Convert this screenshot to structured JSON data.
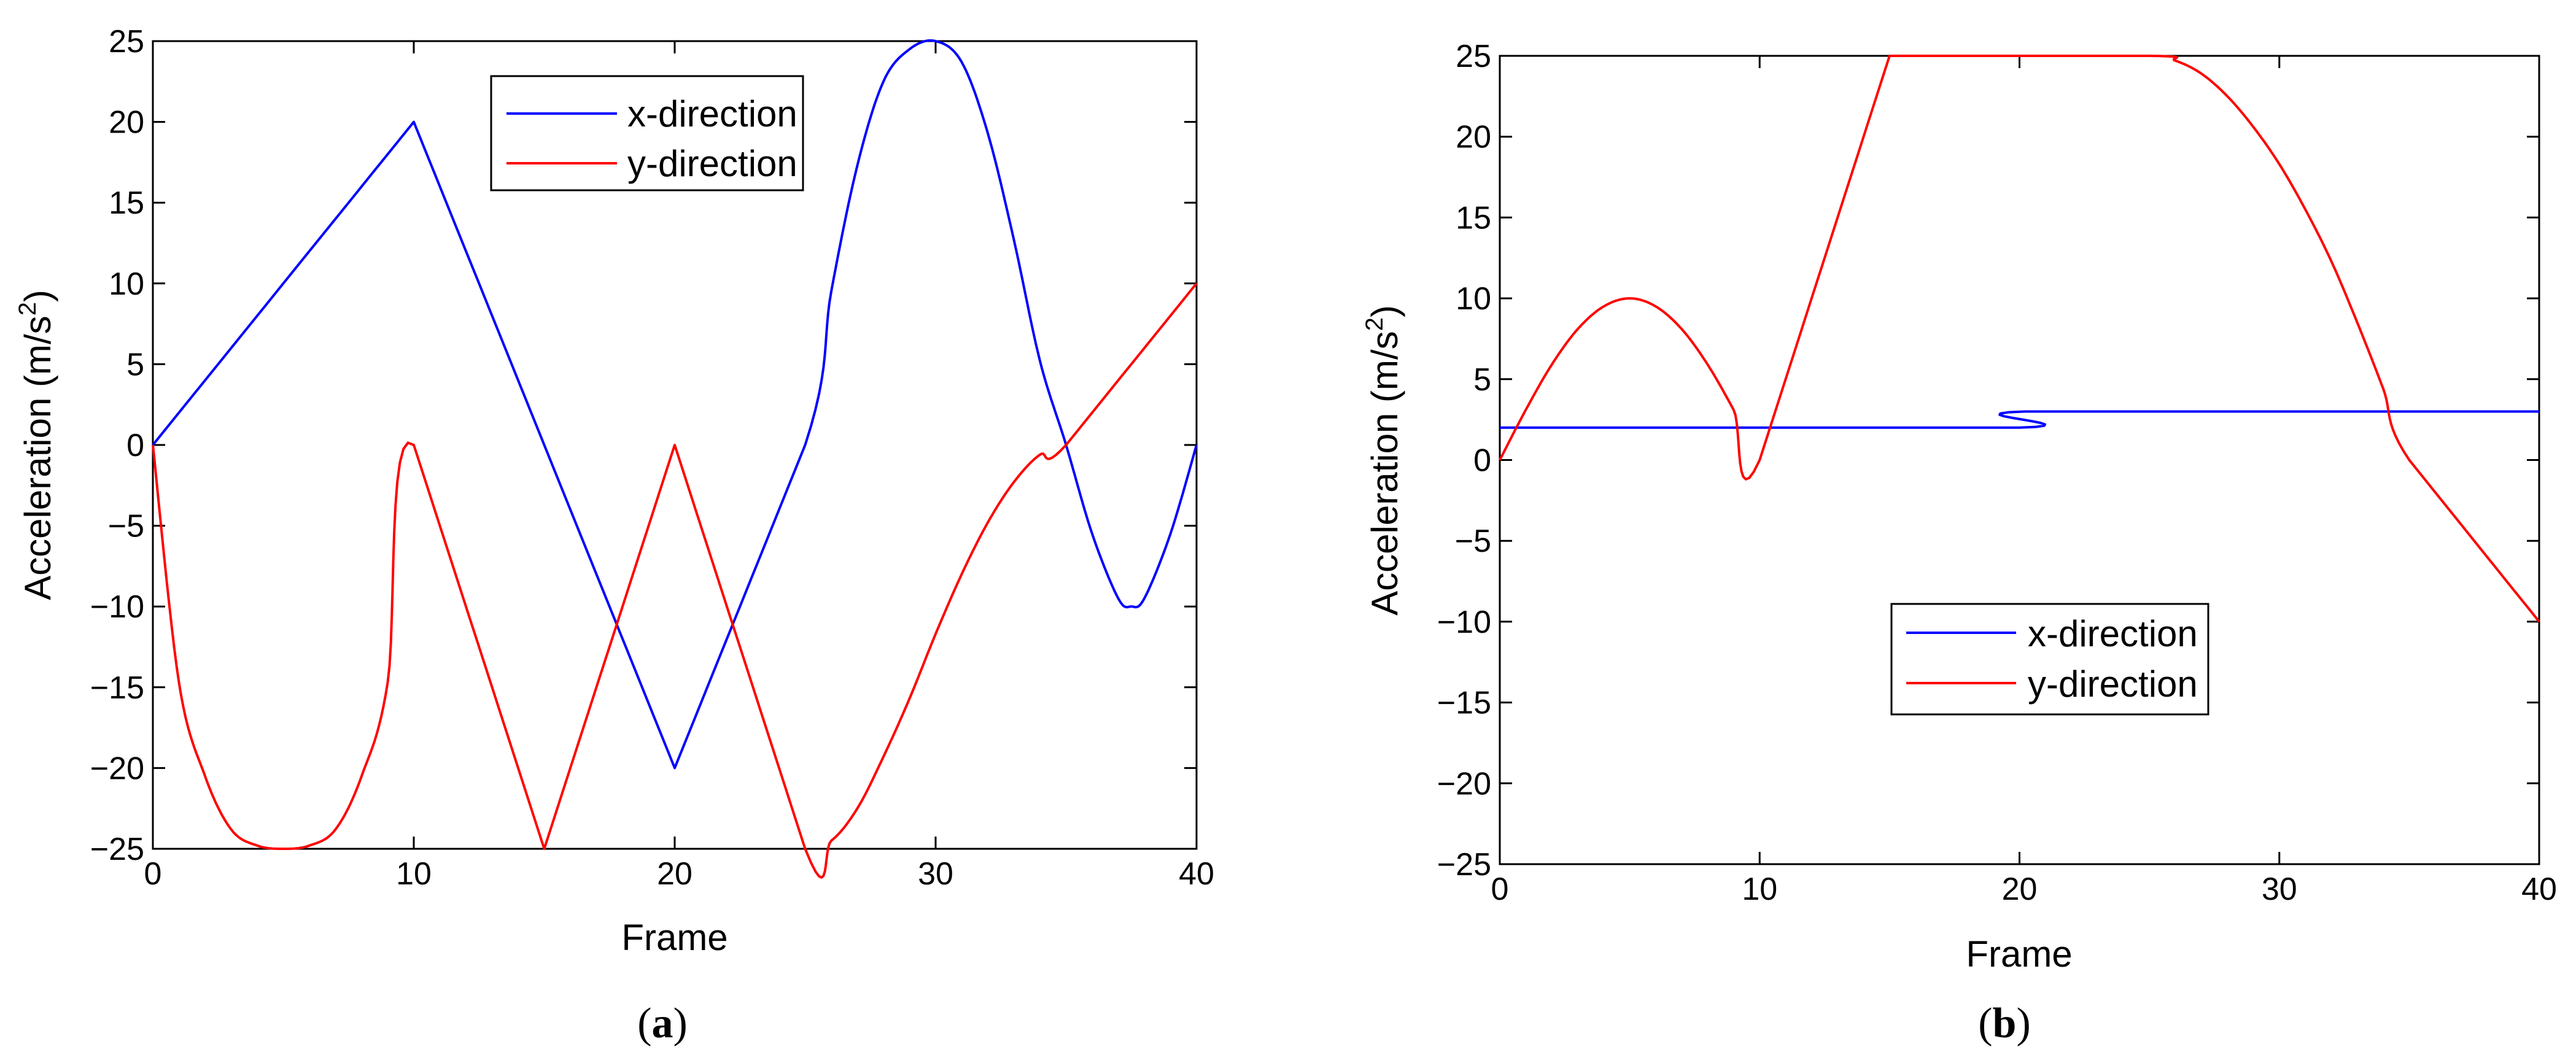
{
  "panels": [
    {
      "caption_open": "(",
      "caption_letter": "a",
      "caption_close": ")"
    },
    {
      "caption_open": "(",
      "caption_letter": "b",
      "caption_close": ")"
    }
  ],
  "colors": {
    "x": "#0000ff",
    "y": "#ff0000",
    "axis": "#000000"
  },
  "chart_data": [
    {
      "type": "line",
      "xlabel": "Frame",
      "ylabel_main": "Acceleration (m/s",
      "ylabel_sup": "2",
      "ylabel_end": ")",
      "xlim": [
        0,
        40
      ],
      "ylim": [
        -25,
        25
      ],
      "xticks": [
        0,
        10,
        20,
        30,
        40
      ],
      "yticks": [
        -25,
        -20,
        -15,
        -10,
        -5,
        0,
        5,
        10,
        15,
        20,
        25
      ],
      "xtick_labels": [
        "0",
        "10",
        "20",
        "30",
        "40"
      ],
      "ytick_labels": [
        "−25",
        "−20",
        "−15",
        "−10",
        "−5",
        "0",
        "5",
        "10",
        "15",
        "20",
        "25"
      ],
      "legend_position": "top-center",
      "series": [
        {
          "name": "x-direction",
          "x": [
            0,
            10,
            15,
            20,
            25,
            26,
            27,
            28,
            29,
            30,
            31,
            32,
            33,
            34,
            35,
            36,
            37,
            37.5,
            38,
            39,
            40
          ],
          "y": [
            0,
            20,
            0,
            -20,
            0,
            9.5,
            17.3,
            22.5,
            24.5,
            25,
            23.7,
            19.3,
            12.7,
            5.2,
            0,
            -5.5,
            -9.5,
            -10,
            -9.5,
            -5.5,
            0
          ]
        },
        {
          "name": "y-direction",
          "x": [
            0,
            1,
            2,
            3,
            4,
            5,
            6,
            7,
            8,
            9,
            10,
            15,
            20,
            25,
            26,
            27,
            28,
            29,
            30,
            31,
            32,
            33,
            34,
            35,
            40
          ],
          "y": [
            0,
            -14.7,
            -20.5,
            -23.8,
            -24.8,
            -25,
            -24.8,
            -23.8,
            -20.5,
            -14.7,
            0,
            -25,
            0,
            -25,
            -24.5,
            -22.5,
            -19.3,
            -15.7,
            -11.7,
            -8,
            -4.8,
            -2.3,
            -0.6,
            0,
            10
          ]
        }
      ]
    },
    {
      "type": "line",
      "xlabel": "Frame",
      "ylabel_main": "Acceleration (m/s",
      "ylabel_sup": "2",
      "ylabel_end": ")",
      "xlim": [
        0,
        40
      ],
      "ylim": [
        -25,
        25
      ],
      "xticks": [
        0,
        10,
        20,
        30,
        40
      ],
      "yticks": [
        -25,
        -20,
        -15,
        -10,
        -5,
        0,
        5,
        10,
        15,
        20,
        25
      ],
      "xtick_labels": [
        "0",
        "10",
        "20",
        "30",
        "40"
      ],
      "ytick_labels": [
        "−25",
        "−20",
        "−15",
        "−10",
        "−5",
        "0",
        "5",
        "10",
        "15",
        "20",
        "25"
      ],
      "legend_position": "center",
      "series": [
        {
          "name": "x-direction",
          "x": [
            0,
            20,
            20.2,
            40
          ],
          "y": [
            2,
            2,
            3,
            3
          ]
        },
        {
          "name": "y-direction",
          "x": [
            0,
            1,
            2,
            3,
            4,
            5,
            6,
            7,
            8,
            9,
            10,
            15,
            25,
            26,
            27,
            28,
            29,
            30,
            31,
            32,
            33,
            34,
            35,
            40
          ],
          "y": [
            0,
            3.1,
            5.9,
            8.1,
            9.5,
            10,
            9.5,
            8.1,
            5.9,
            3.1,
            0,
            25,
            25,
            24.7,
            23.9,
            22.5,
            20.6,
            18.3,
            15.5,
            12.3,
            8.5,
            4.4,
            0,
            -10
          ]
        }
      ]
    }
  ]
}
